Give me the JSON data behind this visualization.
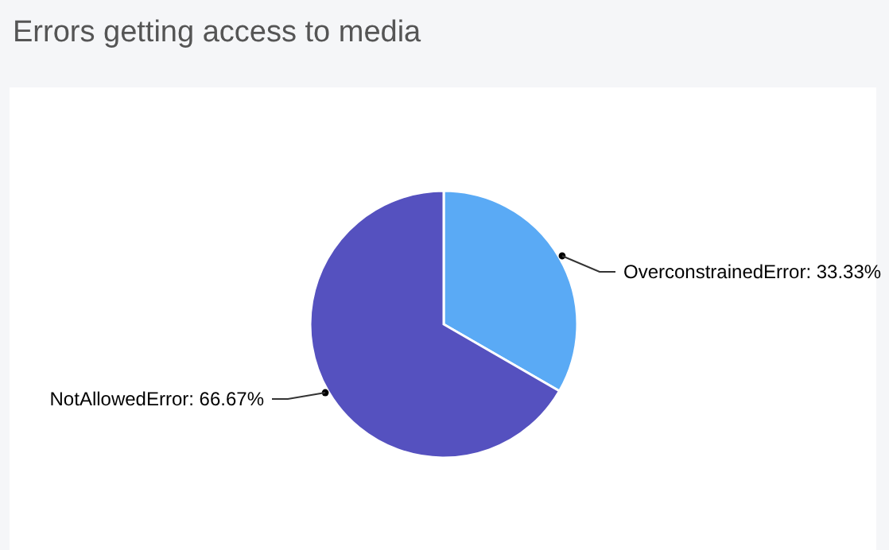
{
  "chart_data": {
    "type": "pie",
    "title": "Errors getting access to media",
    "categories": [
      "OverconstrainedError",
      "NotAllowedError"
    ],
    "values": [
      33.33,
      66.67
    ],
    "value_labels": [
      "33.33%",
      "66.67%"
    ],
    "colors": [
      "#5aaaf5",
      "#5551bf"
    ]
  }
}
